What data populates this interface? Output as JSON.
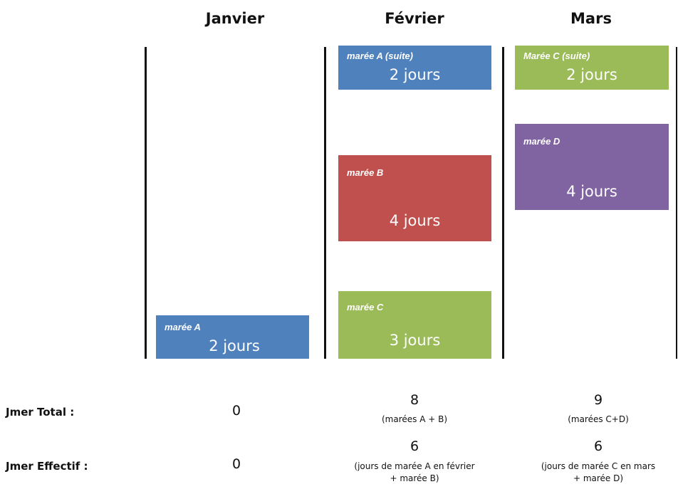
{
  "months": [
    "Janvier",
    "Février",
    "Mars"
  ],
  "colors": {
    "blue": "#4f81bd",
    "red": "#c0504d",
    "green": "#9bbb59",
    "purple": "#8064a2"
  },
  "blocks": {
    "janvier_a": {
      "title": "marée A",
      "days": "2 jours"
    },
    "fevrier_a": {
      "title": "marée A (suite)",
      "days": "2 jours"
    },
    "fevrier_b": {
      "title": "marée B",
      "days": "4 jours"
    },
    "fevrier_c": {
      "title": "marée C",
      "days": "3 jours"
    },
    "mars_c": {
      "title": "Marée C (suite)",
      "days": "2 jours"
    },
    "mars_d": {
      "title": "marée D",
      "days": "4 jours"
    }
  },
  "rows": {
    "total": {
      "label": "Jmer Total  :",
      "janvier": "0",
      "fevrier": "8",
      "fevrier_note": "(marées A + B)",
      "mars": "9",
      "mars_note": "(marées C+D)"
    },
    "effectif": {
      "label": "Jmer Effectif  :",
      "janvier": "0",
      "fevrier": "6",
      "fevrier_note_1": "(jours de marée A en février",
      "fevrier_note_2": "+ marée B)",
      "mars": "6",
      "mars_note_1": "(jours de marée C en mars",
      "mars_note_2": "+ marée D)"
    }
  }
}
